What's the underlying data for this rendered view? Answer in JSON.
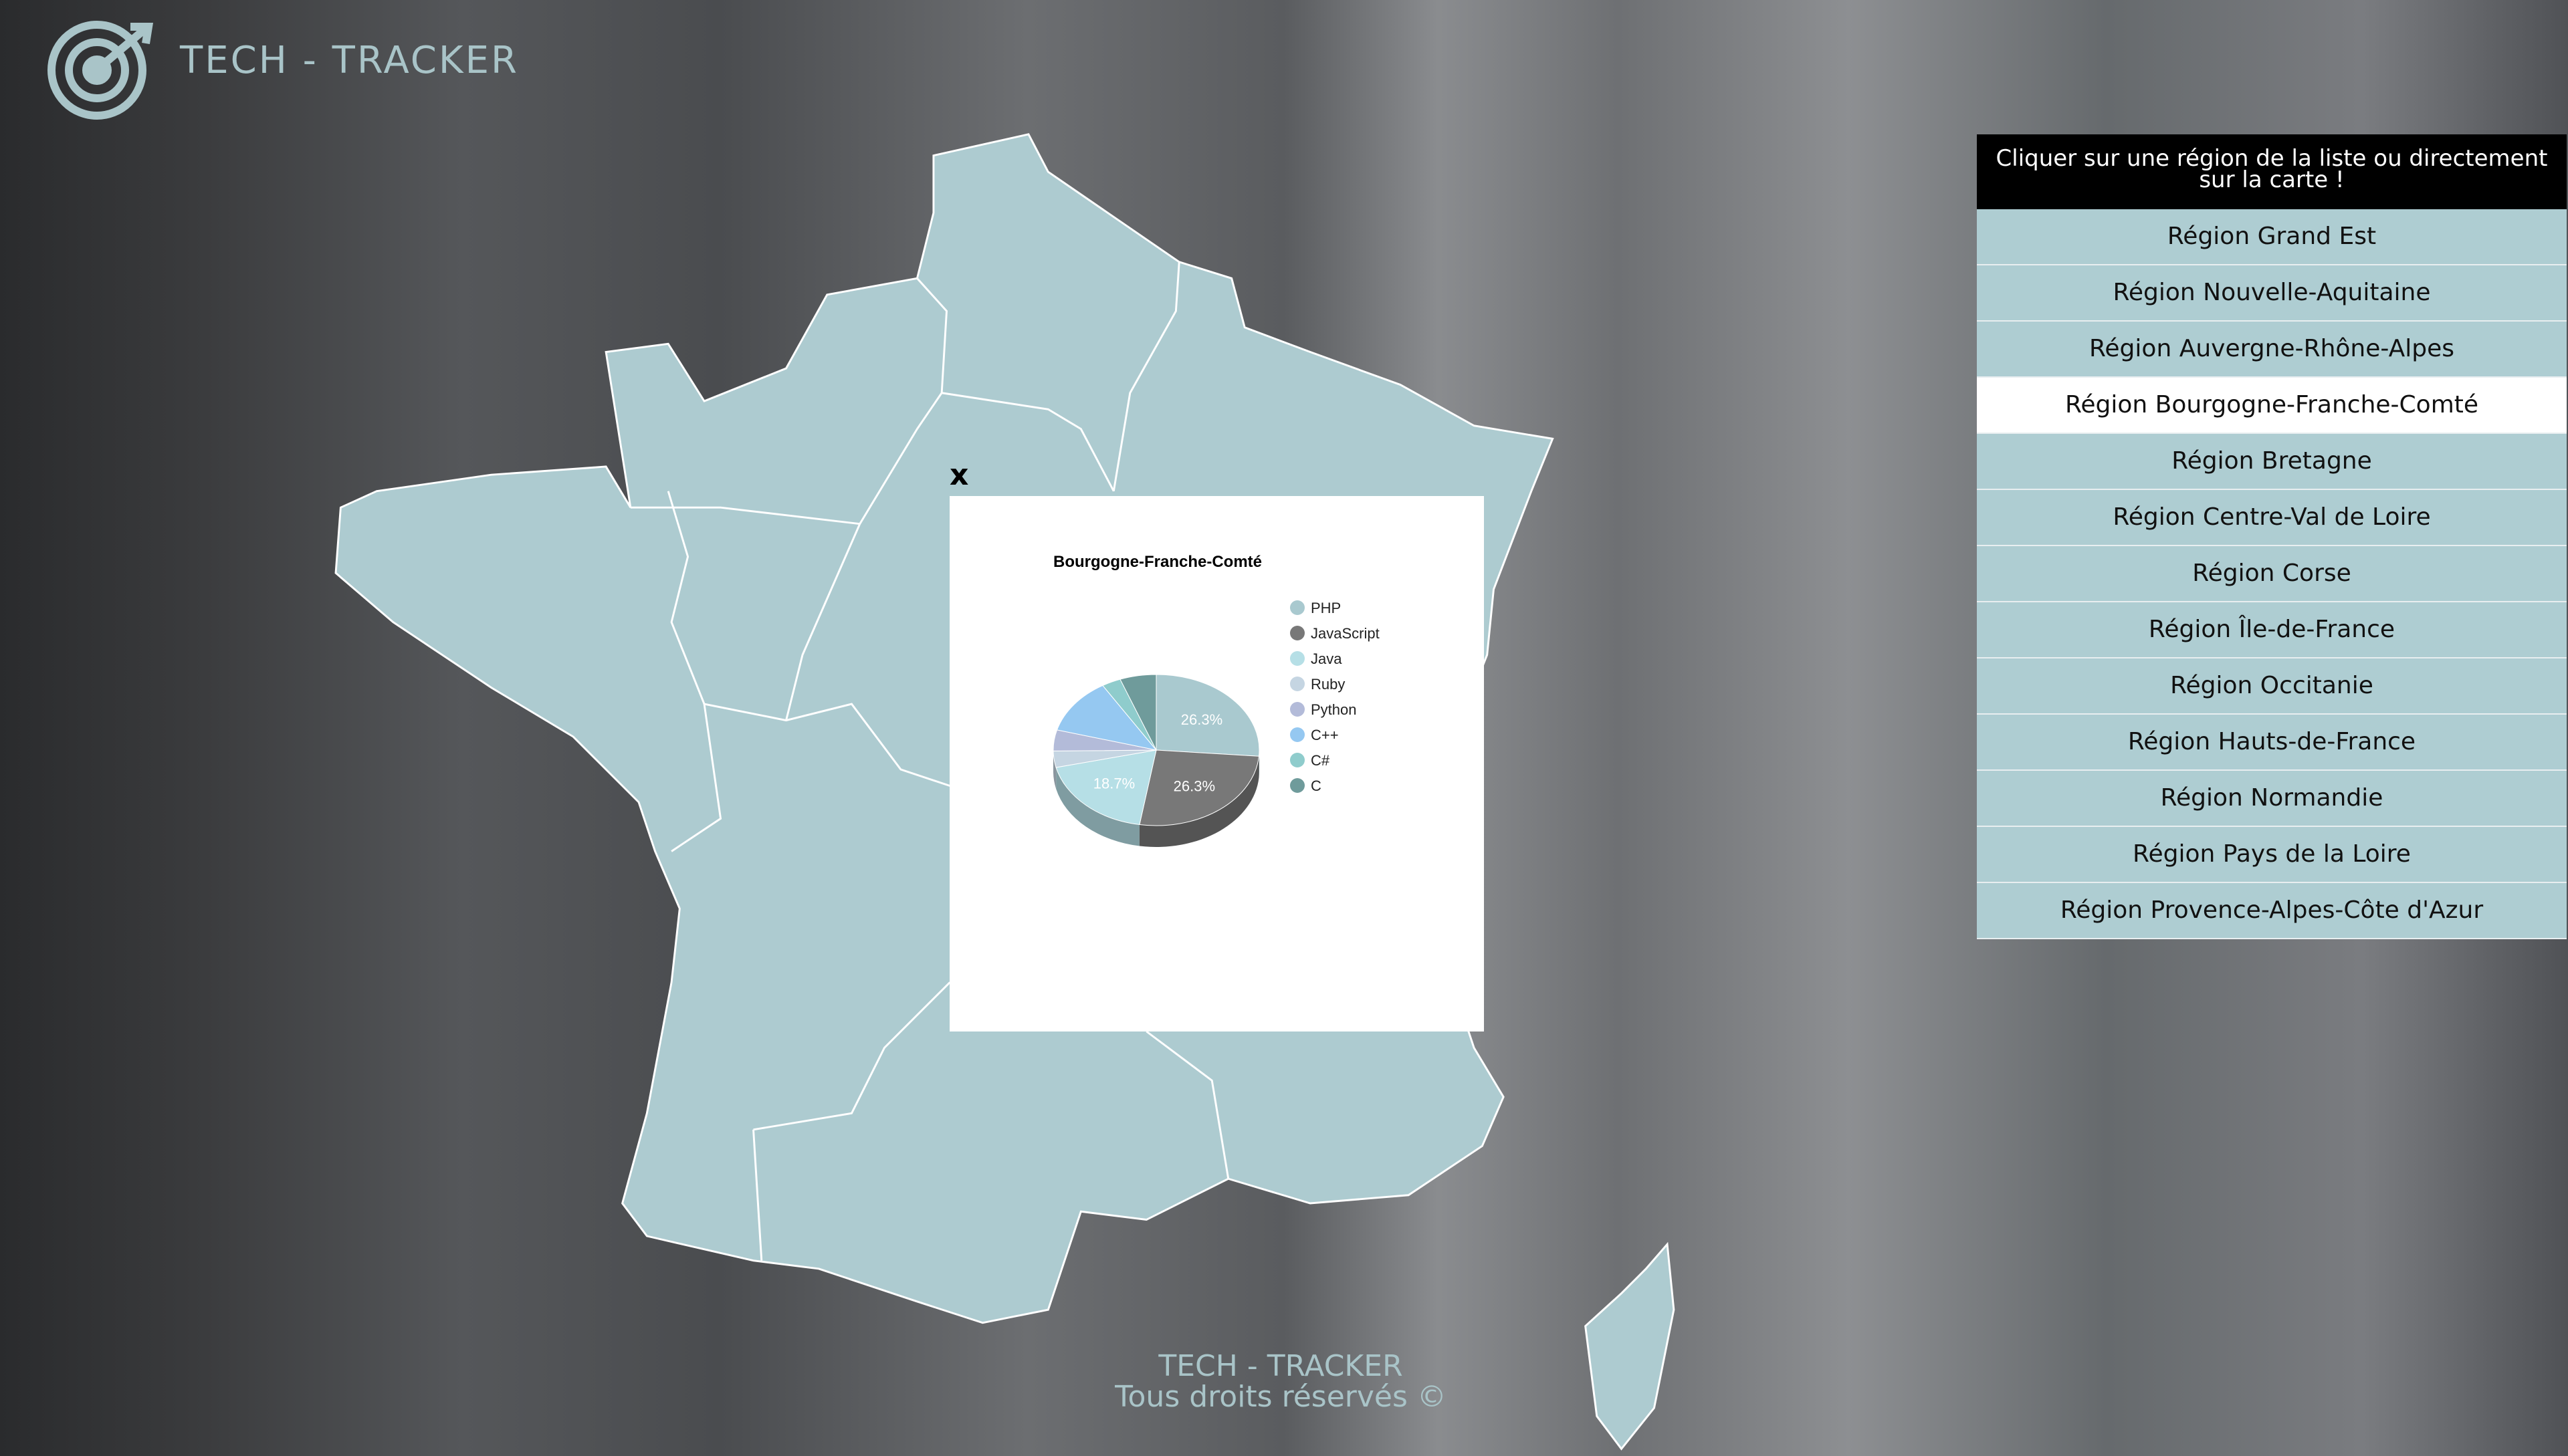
{
  "header": {
    "title": "TECH - TRACKER"
  },
  "region_list": {
    "instruction": "Cliquer sur une région de la liste ou directement sur la carte !",
    "items": [
      "Région Grand Est",
      "Région Nouvelle-Aquitaine",
      "Région Auvergne-Rhône-Alpes",
      "Région Bourgogne-Franche-Comté",
      "Région Bretagne",
      "Région Centre-Val de Loire",
      "Région Corse",
      "Région Île-de-France",
      "Région Occitanie",
      "Région Hauts-de-France",
      "Région Normandie",
      "Région Pays de la Loire",
      "Région Provence-Alpes-Côte d'Azur"
    ],
    "selected": 3
  },
  "popup": {
    "close": "x"
  },
  "chart_data": {
    "type": "pie",
    "title": "Bourgogne-Franche-Comté",
    "categories": [
      "PHP",
      "JavaScript",
      "Java",
      "Ruby",
      "Python",
      "C++",
      "C#",
      "C"
    ],
    "values": [
      26.3,
      26.3,
      18.7,
      3.5,
      4.5,
      12,
      3,
      5.7
    ],
    "value_labels": [
      "26.3%",
      "26.3%",
      "18.7%",
      null,
      null,
      null,
      null,
      null
    ],
    "colors": [
      "#a9c9cf",
      "#787878",
      "#b6dfe6",
      "#c5d5e2",
      "#b3bbd9",
      "#95c8f1",
      "#8fcccc",
      "#6f9b9b"
    ]
  },
  "footer": {
    "title": "TECH - TRACKER",
    "rights": "Tous droits réservés ©"
  }
}
